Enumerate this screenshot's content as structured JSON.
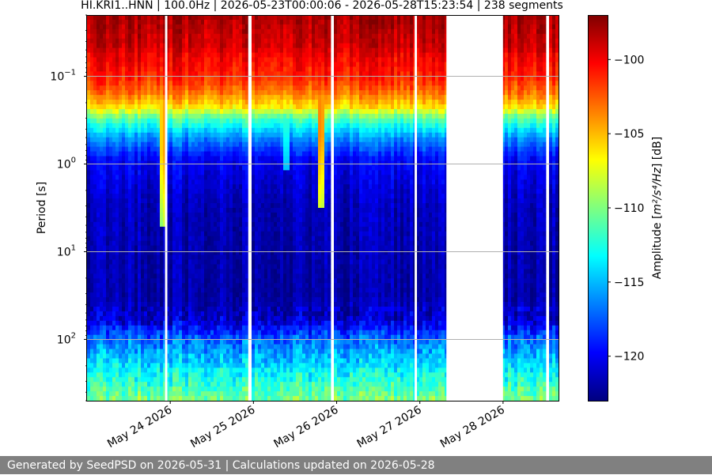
{
  "chart_data": {
    "type": "heatmap",
    "title": "HI.KRI1..HNN | 100.0Hz | 2026-05-23T00:00:06 - 2026-05-28T15:23:54 | 238 segments",
    "x_label": "",
    "y_label": "Period [s]",
    "y_scale": "log",
    "y_range_s": [
      0.02,
      500
    ],
    "y_ticks": [
      {
        "value": 0.1,
        "label_base": "10",
        "label_exp": "−1"
      },
      {
        "value": 1,
        "label_base": "10",
        "label_exp": "0"
      },
      {
        "value": 10,
        "label_base": "10",
        "label_exp": "1"
      },
      {
        "value": 100,
        "label_base": "10",
        "label_exp": "2"
      }
    ],
    "x_range": [
      "2026-05-23T00:00",
      "2026-05-28T16:00"
    ],
    "x_ticks": [
      {
        "date": "2026-05-24",
        "label": "May 24 2026"
      },
      {
        "date": "2026-05-25",
        "label": "May 25 2026"
      },
      {
        "date": "2026-05-26",
        "label": "May 26 2026"
      },
      {
        "date": "2026-05-27",
        "label": "May 27 2026"
      },
      {
        "date": "2026-05-28",
        "label": "May 28 2026"
      }
    ],
    "grid": "horizontal at major y ticks",
    "data_gaps": [
      {
        "start": "2026-05-23T22:30",
        "end": "2026-05-23T23:10"
      },
      {
        "start": "2026-05-24T22:30",
        "end": "2026-05-24T23:10"
      },
      {
        "start": "2026-05-25T22:30",
        "end": "2026-05-25T23:10"
      },
      {
        "start": "2026-05-26T22:30",
        "end": "2026-05-26T23:10"
      },
      {
        "start": "2026-05-27T07:40",
        "end": "2026-05-27T23:59"
      },
      {
        "start": "2026-05-28T12:30",
        "end": "2026-05-28T13:10"
      }
    ],
    "colorbar": {
      "label_prefix": "Amplitude [",
      "label_math": "m²/s⁴/Hz",
      "label_suffix": "] [dB]",
      "range_db": [
        -123,
        -97
      ],
      "ticks": [
        -100,
        -105,
        -110,
        -115,
        -120
      ],
      "colormap": "jet",
      "colors": [
        "#00007f",
        "#0000ff",
        "#007fff",
        "#00ffff",
        "#7fff7f",
        "#ffff00",
        "#ff7f00",
        "#ff0000",
        "#7f0000"
      ]
    },
    "bands_db": [
      {
        "period_s": 0.02,
        "db": -98
      },
      {
        "period_s": 0.045,
        "db": -99
      },
      {
        "period_s": 0.06,
        "db": -100
      },
      {
        "period_s": 0.1,
        "db": -101
      },
      {
        "period_s": 0.15,
        "db": -103
      },
      {
        "period_s": 0.22,
        "db": -106
      },
      {
        "period_s": 0.3,
        "db": -111
      },
      {
        "period_s": 0.5,
        "db": -116
      },
      {
        "period_s": 0.9,
        "db": -120
      },
      {
        "period_s": 3,
        "db": -121.5
      },
      {
        "period_s": 30,
        "db": -122
      },
      {
        "period_s": 60,
        "db": -121
      },
      {
        "period_s": 100,
        "db": -117
      },
      {
        "period_s": 250,
        "db": -113
      },
      {
        "period_s": 500,
        "db": -110
      }
    ],
    "events": [
      {
        "time": "2026-05-23T22:00",
        "period_max_s": 5,
        "db": -102
      },
      {
        "time": "2026-05-24T07:00",
        "period_max_s": 0.8,
        "db": -113
      },
      {
        "time": "2026-05-24T20:30",
        "period_max_s": 1,
        "db": -114
      },
      {
        "time": "2026-05-25T09:30",
        "period_max_s": 1.2,
        "db": -108
      },
      {
        "time": "2026-05-25T19:30",
        "period_max_s": 3,
        "db": -101
      },
      {
        "time": "2026-05-26T21:00",
        "period_max_s": 1.2,
        "db": -113
      },
      {
        "time": "2026-05-27T05:30",
        "period_max_s": 1.5,
        "db": -114
      },
      {
        "time": "2026-05-28T06:00",
        "period_max_s": 1.5,
        "db": -113
      }
    ]
  },
  "footer": {
    "text": "Generated by SeedPSD on 2026-05-31 | Calculations updated on 2026-05-28"
  }
}
